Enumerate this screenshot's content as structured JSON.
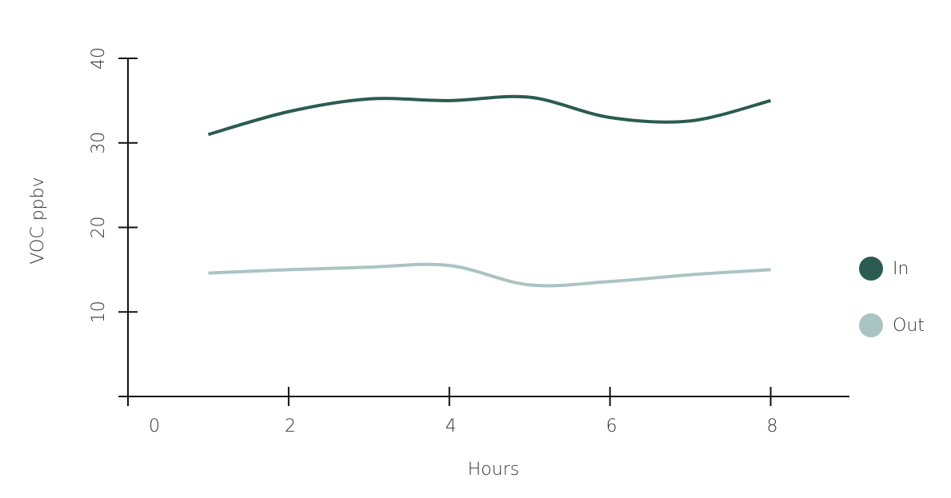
{
  "chart_data": {
    "type": "line",
    "x_label": "Hours",
    "y_label": "VOC ppbv",
    "x": [
      1,
      2,
      3,
      4,
      5,
      6,
      7,
      8
    ],
    "series": [
      {
        "name": "In",
        "color": "#2b5b51",
        "values": [
          31.0,
          33.7,
          35.2,
          35.0,
          35.4,
          33.0,
          32.6,
          35.0
        ]
      },
      {
        "name": "Out",
        "color": "#a9c4c3",
        "values": [
          14.6,
          15.0,
          15.3,
          15.5,
          13.2,
          13.6,
          14.4,
          15.0
        ]
      }
    ],
    "xlim": [
      0,
      9
    ],
    "xticks": [
      0,
      2,
      4,
      6,
      8
    ],
    "ylim": [
      0,
      40
    ],
    "yticks": [
      10,
      20,
      30,
      40
    ],
    "grid": false,
    "legend": "right"
  }
}
